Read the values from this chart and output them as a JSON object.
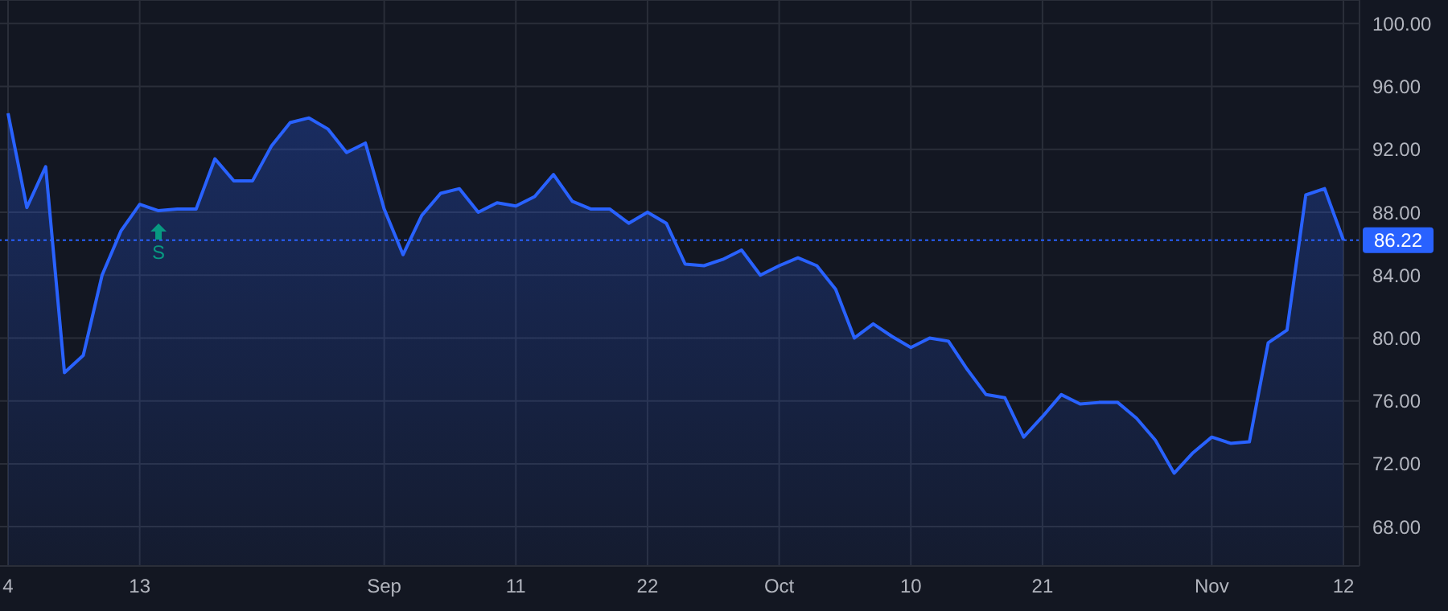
{
  "chart_data": {
    "type": "area",
    "categories": [
      "4",
      null,
      null,
      null,
      null,
      null,
      null,
      "13",
      null,
      null,
      null,
      null,
      null,
      null,
      null,
      null,
      null,
      null,
      null,
      null,
      "Sep",
      null,
      null,
      null,
      null,
      null,
      null,
      "11",
      null,
      null,
      null,
      null,
      null,
      null,
      "22",
      null,
      null,
      null,
      null,
      null,
      null,
      "Oct",
      null,
      null,
      null,
      null,
      null,
      null,
      "10",
      null,
      null,
      null,
      null,
      null,
      null,
      "21",
      null,
      null,
      null,
      null,
      null,
      null,
      null,
      null,
      "Nov",
      null,
      null,
      null,
      null,
      null,
      null,
      "12"
    ],
    "series": [
      {
        "color": "#2962ff",
        "values": [
          94.3,
          88.3,
          90.9,
          77.8,
          78.9,
          84.0,
          86.8,
          88.5,
          88.1,
          88.2,
          88.2,
          91.4,
          90.0,
          90.0,
          92.2,
          93.7,
          94.0,
          93.3,
          91.8,
          92.4,
          88.2,
          85.3,
          87.8,
          89.2,
          89.5,
          88.0,
          88.6,
          88.4,
          89.0,
          90.4,
          88.7,
          88.2,
          88.2,
          87.3,
          88.0,
          87.3,
          84.7,
          84.6,
          85.0,
          85.6,
          84.0,
          84.6,
          85.1,
          84.6,
          83.1,
          80.0,
          80.9,
          80.1,
          79.4,
          80.0,
          79.8,
          78.0,
          76.4,
          76.2,
          73.7,
          75.0,
          76.4,
          75.8,
          75.9,
          75.9,
          74.9,
          73.5,
          71.4,
          72.7,
          73.7,
          73.3,
          73.4,
          79.7,
          80.5,
          89.1,
          89.5,
          86.22
        ]
      }
    ],
    "ylim": [
      65.5,
      101.5
    ],
    "yticks": [
      {
        "value": 68,
        "label": "68.00"
      },
      {
        "value": 72,
        "label": "72.00"
      },
      {
        "value": 76,
        "label": "76.00"
      },
      {
        "value": 80,
        "label": "80.00"
      },
      {
        "value": 84,
        "label": "84.00"
      },
      {
        "value": 88,
        "label": "88.00"
      },
      {
        "value": 92,
        "label": "92.00"
      },
      {
        "value": 96,
        "label": "96.00"
      },
      {
        "value": 100,
        "label": "100.00"
      }
    ],
    "ref_lines": [
      {
        "axis": "y",
        "value": 86.22,
        "label": "86.22",
        "color": "#2962ff",
        "line_style": "dotted"
      }
    ],
    "annotations": [
      "S"
    ],
    "grid": true,
    "marker": "none",
    "line_style": "solid"
  }
}
